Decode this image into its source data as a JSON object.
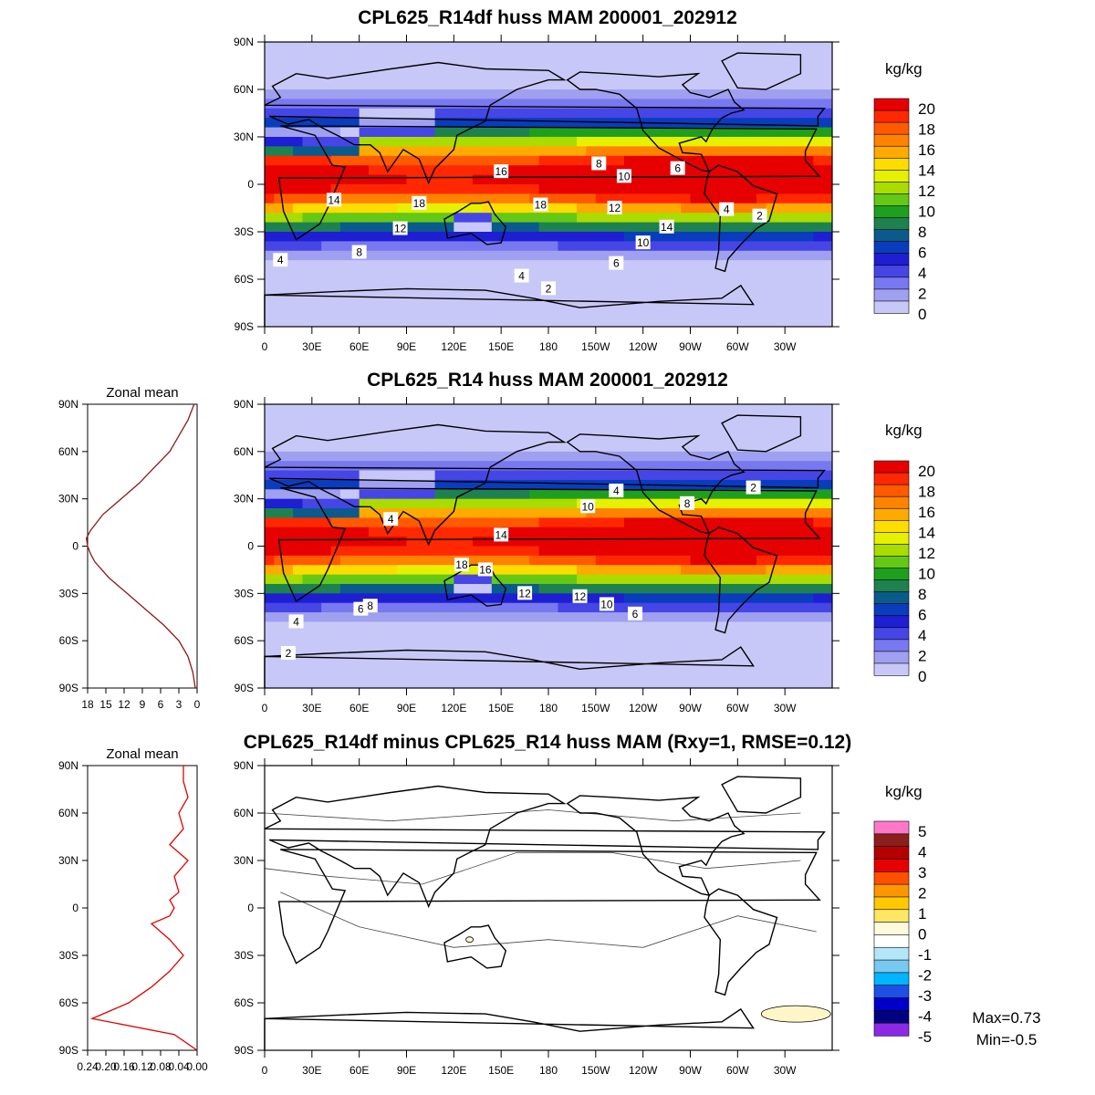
{
  "panels": [
    {
      "id": "top",
      "title": "CPL625_R14df huss MAM 200001_202912",
      "units": "kg/kg",
      "colorbar_labels": [
        "20",
        "18",
        "16",
        "14",
        "12",
        "10",
        "8",
        "6",
        "4",
        "2",
        "0"
      ],
      "contour_labels": [
        "2",
        "4",
        "4",
        "6",
        "8",
        "10",
        "12",
        "14",
        "14",
        "16",
        "18",
        "18",
        "12",
        "10",
        "8",
        "6",
        "4",
        "2"
      ]
    },
    {
      "id": "mid",
      "title": "CPL625_R14 huss MAM 200001_202912",
      "units": "kg/kg",
      "zonal_title": "Zonal mean",
      "zonal_xticks": [
        "18",
        "15",
        "12",
        "9",
        "6",
        "3",
        "0"
      ],
      "colorbar_labels": [
        "20",
        "18",
        "16",
        "14",
        "12",
        "10",
        "8",
        "6",
        "4",
        "2",
        "0"
      ],
      "contour_labels": [
        "2",
        "4",
        "4",
        "6",
        "8",
        "10",
        "12",
        "14",
        "16",
        "18",
        "12",
        "10",
        "8",
        "6",
        "4",
        "2"
      ]
    },
    {
      "id": "bot",
      "title": "CPL625_R14df minus CPL625_R14 huss MAM (Rxy=1, RMSE=0.12)",
      "units": "kg/kg",
      "zonal_title": "Zonal mean",
      "zonal_xticks": [
        "0.24",
        "0.20",
        "0.16",
        "0.12",
        "0.08",
        "0.04",
        "0.00"
      ],
      "colorbar_labels": [
        "5",
        "4",
        "3",
        "2",
        "1",
        "0",
        "-1",
        "-2",
        "-3",
        "-4",
        "-5"
      ],
      "max_text": "Max=0.73",
      "min_text": "Min=-0.5"
    }
  ],
  "lat_ticks": [
    "90N",
    "60N",
    "30N",
    "0",
    "30S",
    "60S",
    "90S"
  ],
  "lon_ticks": [
    "0",
    "30E",
    "60E",
    "90E",
    "120E",
    "150E",
    "180",
    "150W",
    "120W",
    "90W",
    "60W",
    "30W"
  ],
  "colors": {
    "abs_scale": [
      "#ffffff",
      "#c8c8f8",
      "#a0a0f0",
      "#7878f0",
      "#4646e6",
      "#1e1ed2",
      "#0a3cbe",
      "#0a5a8c",
      "#1e8250",
      "#1ea01e",
      "#64c814",
      "#aadc00",
      "#e6f000",
      "#ffdc00",
      "#ffaa00",
      "#ff8200",
      "#ff5a00",
      "#ff2800",
      "#e60000"
    ],
    "diff_scale": [
      "#8c28e6",
      "#000080",
      "#0000c8",
      "#1e50e6",
      "#00b4ff",
      "#78c8f0",
      "#b4e6fa",
      "#ffffff",
      "#fffadc",
      "#ffe664",
      "#ffc800",
      "#ff9600",
      "#ff5000",
      "#e60000",
      "#b40000",
      "#8c1e1e",
      "#ff78c8"
    ]
  },
  "zonal_mean_profile": {
    "lat": [
      90,
      80,
      70,
      60,
      50,
      40,
      30,
      20,
      10,
      5,
      0,
      -5,
      -10,
      -20,
      -30,
      -40,
      -50,
      -60,
      -70,
      -80,
      -90
    ],
    "mid_value": [
      0.5,
      1.5,
      3.0,
      4.5,
      7.0,
      9.5,
      12.5,
      15.5,
      17.5,
      18.2,
      18.0,
      17.5,
      16.8,
      14.5,
      11.5,
      8.5,
      5.5,
      3.0,
      1.5,
      0.7,
      0.3
    ],
    "bot_value": [
      0.03,
      0.03,
      0.02,
      0.04,
      0.03,
      0.06,
      0.02,
      0.05,
      0.04,
      0.06,
      0.05,
      0.06,
      0.1,
      0.06,
      0.03,
      0.06,
      0.1,
      0.15,
      0.23,
      0.05,
      0.0
    ]
  }
}
